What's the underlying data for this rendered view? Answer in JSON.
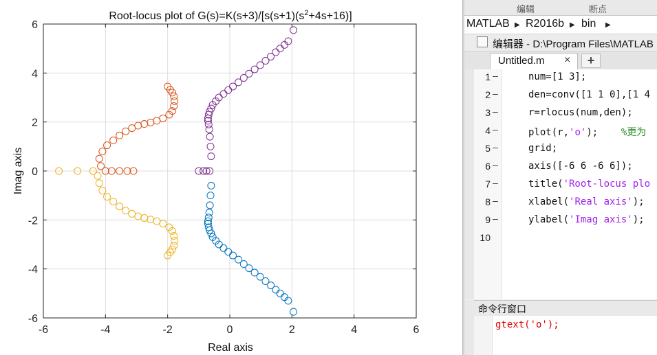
{
  "figure": {
    "title_pre": "Root-locus plot of G(s)=K(s+3)/[s(s+1)(s",
    "title_sup": "2",
    "title_post": "+4s+16)]",
    "xlabel": "Real axis",
    "ylabel": "Imag axis",
    "xticks": [
      "-6",
      "-4",
      "-2",
      "0",
      "2",
      "4",
      "6"
    ],
    "yticks": [
      "6",
      "4",
      "2",
      "0",
      "-2",
      "-4",
      "-6"
    ]
  },
  "chart_data": {
    "type": "scatter",
    "title": "Root-locus plot of G(s)=K(s+3)/[s(s+1)(s^2+4s+16)]",
    "xlabel": "Real axis",
    "ylabel": "Imag axis",
    "xlim": [
      -6,
      6
    ],
    "ylim": [
      -6,
      6
    ],
    "grid": true,
    "marker": "o",
    "series": [
      {
        "color": "#0072BD",
        "x": [
          -0.6,
          -0.62,
          -0.64,
          -0.66,
          -0.68,
          -0.7,
          -0.7,
          -0.68,
          -0.65,
          -0.6,
          -0.55,
          -0.45,
          -0.35,
          -0.2,
          -0.05,
          0.1,
          0.28,
          0.45,
          0.62,
          0.8,
          0.98,
          1.15,
          1.32,
          1.48,
          1.62,
          1.76,
          1.88,
          2.05
        ],
        "y": [
          -0.6,
          -1.0,
          -1.4,
          -1.7,
          -1.9,
          -2.05,
          -2.15,
          -2.3,
          -2.42,
          -2.55,
          -2.7,
          -2.85,
          -3.0,
          -3.15,
          -3.3,
          -3.45,
          -3.62,
          -3.8,
          -3.97,
          -4.15,
          -4.32,
          -4.5,
          -4.67,
          -4.85,
          -5.0,
          -5.15,
          -5.3,
          -5.75
        ]
      },
      {
        "color": "#D95319",
        "x": [
          -3.1,
          -3.3,
          -3.55,
          -3.8,
          -4.0,
          -4.15,
          -4.2,
          -4.1,
          -3.95,
          -3.75,
          -3.55,
          -3.35,
          -3.15,
          -2.95,
          -2.75,
          -2.55,
          -2.35,
          -2.15,
          -1.95,
          -1.85,
          -1.8,
          -1.78,
          -1.8,
          -1.85,
          -1.92,
          -2.0
        ],
        "y": [
          0.0,
          0.0,
          0.0,
          0.0,
          0.0,
          0.2,
          0.5,
          0.8,
          1.05,
          1.25,
          1.45,
          1.62,
          1.75,
          1.85,
          1.92,
          1.98,
          2.05,
          2.15,
          2.3,
          2.45,
          2.65,
          2.85,
          3.05,
          3.2,
          3.32,
          3.45
        ]
      },
      {
        "color": "#EDB120",
        "x": [
          -5.5,
          -4.9,
          -4.4,
          -4.25,
          -4.2,
          -4.1,
          -3.95,
          -3.75,
          -3.55,
          -3.35,
          -3.15,
          -2.95,
          -2.75,
          -2.55,
          -2.35,
          -2.15,
          -1.95,
          -1.85,
          -1.8,
          -1.78,
          -1.8,
          -1.85,
          -1.92,
          -2.0
        ],
        "y": [
          0.0,
          0.0,
          0.0,
          -0.2,
          -0.5,
          -0.8,
          -1.05,
          -1.25,
          -1.45,
          -1.62,
          -1.75,
          -1.85,
          -1.92,
          -1.98,
          -2.05,
          -2.15,
          -2.3,
          -2.45,
          -2.65,
          -2.85,
          -3.05,
          -3.2,
          -3.32,
          -3.45
        ]
      },
      {
        "color": "#7E2F8E",
        "x": [
          -1.0,
          -0.85,
          -0.75,
          -0.65,
          -0.6,
          -0.62,
          -0.64,
          -0.66,
          -0.68,
          -0.7,
          -0.7,
          -0.68,
          -0.65,
          -0.6,
          -0.55,
          -0.45,
          -0.35,
          -0.2,
          -0.05,
          0.1,
          0.28,
          0.45,
          0.62,
          0.8,
          0.98,
          1.15,
          1.32,
          1.48,
          1.62,
          1.76,
          1.88,
          2.05
        ],
        "y": [
          0.0,
          0.0,
          0.0,
          0.0,
          0.6,
          1.0,
          1.4,
          1.7,
          1.9,
          2.05,
          2.15,
          2.3,
          2.42,
          2.55,
          2.7,
          2.85,
          3.0,
          3.15,
          3.3,
          3.45,
          3.62,
          3.8,
          3.97,
          4.15,
          4.32,
          4.5,
          4.67,
          4.85,
          5.0,
          5.15,
          5.3,
          5.75
        ]
      }
    ]
  },
  "ide": {
    "toolstrip": [
      "编辑",
      "断点"
    ],
    "breadcrumb": [
      "MATLAB",
      "R2016b",
      "bin"
    ],
    "editor_title": "编辑器 - D:\\Program Files\\MATLAB",
    "tab_label": "Untitled.m",
    "tab_close": "×",
    "add_tab": "+",
    "code_lines": [
      {
        "num": "1",
        "dash": "—",
        "text": "num=[1 3];"
      },
      {
        "num": "2",
        "dash": "—",
        "text": "den=conv([1 1 0],[1 4"
      },
      {
        "num": "3",
        "dash": "—",
        "text": "r=rlocus(num,den);"
      },
      {
        "num": "4",
        "dash": "—",
        "pre": "plot(r,",
        "str": "'o'",
        "post": ");    ",
        "cmt": "%更为"
      },
      {
        "num": "5",
        "dash": "—",
        "text": "grid;"
      },
      {
        "num": "6",
        "dash": "—",
        "text": "axis([-6 6 -6 6]);"
      },
      {
        "num": "7",
        "dash": "—",
        "pre": "title(",
        "str": "'Root-locus plo"
      },
      {
        "num": "8",
        "dash": "—",
        "pre": "xlabel(",
        "str": "'Real axis'",
        "post": ");"
      },
      {
        "num": "9",
        "dash": "—",
        "pre": "ylabel(",
        "str": "'Imag axis'",
        "post": ");"
      },
      {
        "num": "10",
        "dash": "",
        "text": ""
      }
    ],
    "cmd_title": "命令行窗口",
    "cmd_text": "gtext('o');"
  }
}
